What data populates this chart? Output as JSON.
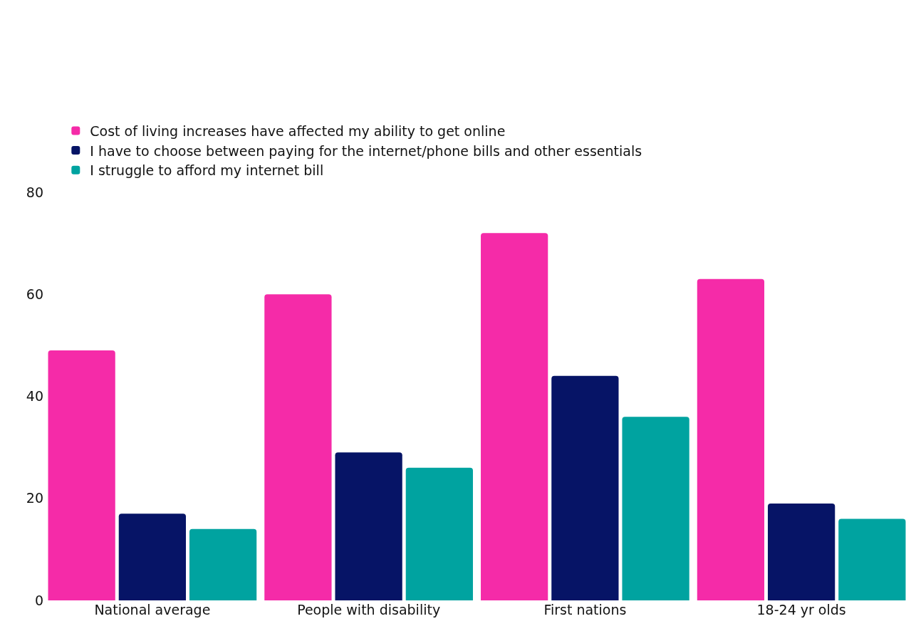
{
  "chart_data": {
    "type": "bar",
    "categories": [
      "National average",
      "People with disability",
      "First nations",
      "18-24 yr olds"
    ],
    "series": [
      {
        "name": "Cost of living increases have affected my ability to get online",
        "color": "#f52ba8",
        "values": [
          49,
          60,
          72,
          63
        ]
      },
      {
        "name": "I have to choose between paying for the internet/phone bills and other essentials",
        "color": "#061466",
        "values": [
          17,
          29,
          44,
          19
        ]
      },
      {
        "name": "I struggle to afford my internet bill",
        "color": "#00a3a0",
        "values": [
          14,
          26,
          36,
          16
        ]
      }
    ],
    "ylim": [
      0,
      80
    ],
    "yticks": [
      0,
      20,
      40,
      60,
      80
    ],
    "grid": false,
    "legend": "top left"
  }
}
